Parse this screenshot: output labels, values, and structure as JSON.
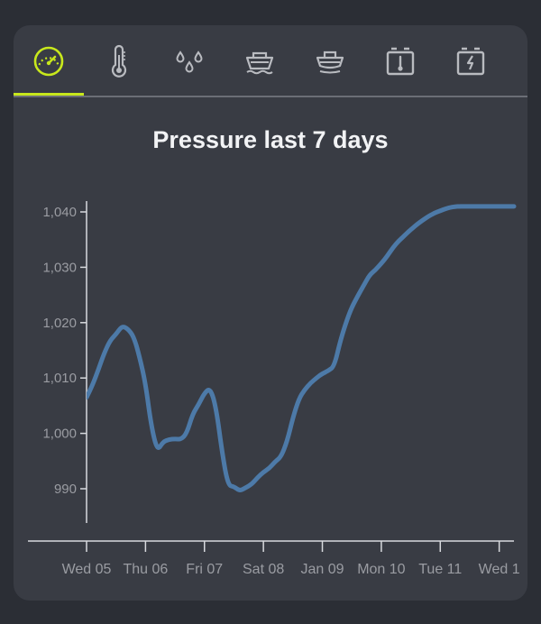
{
  "tabs": [
    {
      "icon": "gauge-icon",
      "active": true
    },
    {
      "icon": "thermometer-icon",
      "active": false
    },
    {
      "icon": "droplets-icon",
      "active": false
    },
    {
      "icon": "boat-icon",
      "active": false
    },
    {
      "icon": "boat-hull-icon",
      "active": false
    },
    {
      "icon": "battery-thermometer-icon",
      "active": false
    },
    {
      "icon": "battery-charge-icon",
      "active": false
    }
  ],
  "colors": {
    "accent": "#c8e81c",
    "line": "#4d7aa8",
    "axis": "#d8dade",
    "tick_text": "#9a9ca2",
    "icon": "#b9bbc0"
  },
  "chart_data": {
    "type": "line",
    "title": "Pressure last 7 days",
    "xlabel": "",
    "ylabel": "",
    "x_tick_labels": [
      "Wed 05",
      "Thu 06",
      "Fri 07",
      "Sat 08",
      "Jan 09",
      "Mon 10",
      "Tue 11",
      "Wed 1"
    ],
    "y_ticks": [
      990,
      1000,
      1010,
      1020,
      1030,
      1040
    ],
    "y_tick_labels": [
      "990",
      "1,000",
      "1,010",
      "1,020",
      "1,030",
      "1,040"
    ],
    "ylim": [
      983,
      1041
    ],
    "xlim_days": [
      0,
      7.25
    ],
    "grid": false,
    "series": [
      {
        "x_days": [
          0,
          0.1,
          0.2,
          0.3,
          0.4,
          0.5,
          0.6,
          0.7,
          0.8,
          0.9,
          1.0,
          1.1,
          1.2,
          1.3,
          1.4,
          1.5,
          1.6,
          1.7,
          1.8,
          1.9,
          2.0,
          2.1,
          2.2,
          2.3,
          2.4,
          2.5,
          2.6,
          2.7,
          2.8,
          2.9,
          3.0,
          3.1,
          3.2,
          3.3,
          3.4,
          3.5,
          3.6,
          3.7,
          3.8,
          3.9,
          4.0,
          4.1,
          4.2,
          4.3,
          4.4,
          4.5,
          4.6,
          4.7,
          4.8,
          4.9,
          5.0,
          5.1,
          5.2,
          5.3,
          5.4,
          5.5,
          5.6,
          5.7,
          5.8,
          5.9,
          6.0,
          6.1,
          6.2,
          6.3,
          6.4,
          6.5,
          6.6,
          6.7,
          6.8,
          6.9,
          7.0,
          7.1,
          7.2,
          7.25
        ],
        "values": [
          1006.5,
          1008.7,
          1011.5,
          1014.5,
          1016.8,
          1017.9,
          1019.4,
          1018.9,
          1017.5,
          1013.8,
          1009.0,
          1001.2,
          996.8,
          998.5,
          998.9,
          999.0,
          998.9,
          1000.0,
          1003.5,
          1005.2,
          1007.3,
          1008.2,
          1004.5,
          996.5,
          990.6,
          990.4,
          989.6,
          990.2,
          990.8,
          992.0,
          993.0,
          993.7,
          994.9,
          995.8,
          998.5,
          1002.8,
          1006.2,
          1007.9,
          1009.1,
          1010.0,
          1010.8,
          1011.3,
          1012.1,
          1016.5,
          1020.0,
          1022.8,
          1024.8,
          1026.7,
          1028.6,
          1029.5,
          1030.7,
          1032.0,
          1033.6,
          1034.8,
          1035.8,
          1036.8,
          1037.7,
          1038.5,
          1039.2,
          1039.8,
          1040.2,
          1040.6,
          1040.9,
          1041.0,
          1041.0,
          1041.0,
          1041.0,
          1041.0,
          1041.0,
          1041.0,
          1041.0,
          1041.0,
          1041.0,
          1041.0
        ]
      }
    ]
  }
}
